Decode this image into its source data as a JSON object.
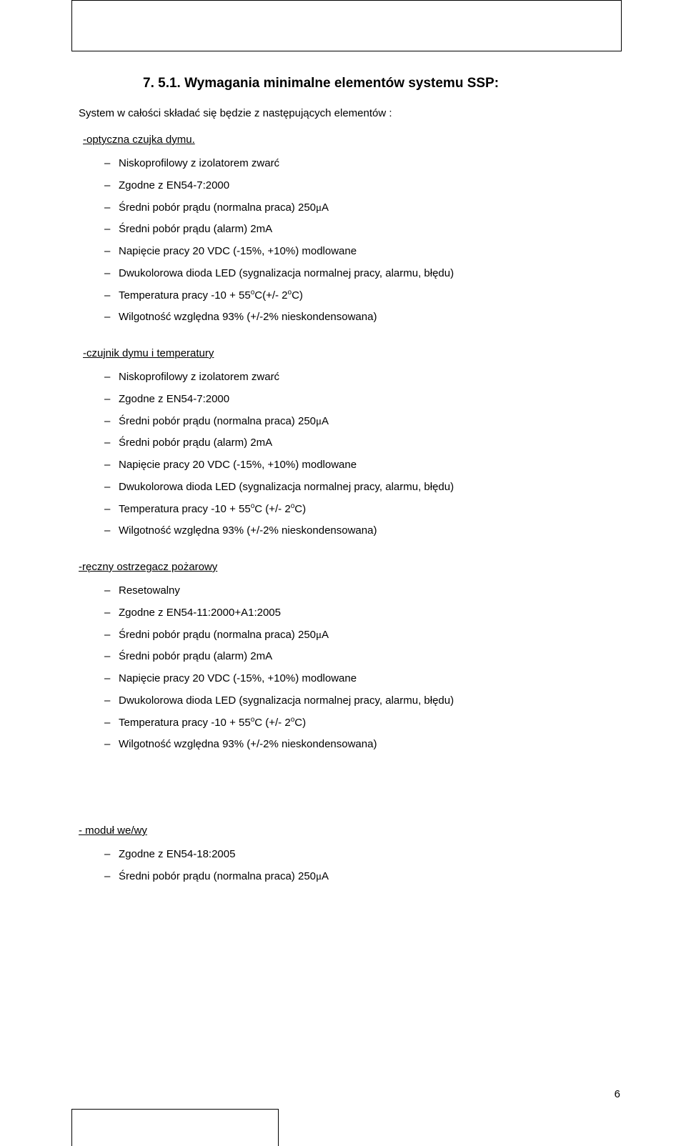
{
  "section_title": "7.   5.1. Wymagania  minimalne elementów systemu SSP:",
  "intro": "System w całości składać się będzie z następujących elementów :",
  "groups": {
    "optyczna": {
      "label": " -optyczna czujka dymu.",
      "items": [
        "Niskoprofilowy z izolatorem zwarć",
        "Zgodne z EN54-7:2000",
        "Średni pobór prądu (normalna praca) 250μA",
        "Średni pobór prądu (alarm) 2mA",
        "Napięcie pracy 20 VDC (-15%, +10%) modlowane",
        "Dwukolorowa dioda LED (sygnalizacja normalnej pracy, alarmu, błędu)",
        "Temperatura pracy -10 + 55°C(+/- 2°C)",
        "Wilgotność względna 93% (+/-2% nieskondensowana)"
      ]
    },
    "czujnik": {
      "label": " -czujnik dymu i temperatury",
      "items": [
        "Niskoprofilowy z izolatorem zwarć",
        "Zgodne z EN54-7:2000",
        "Średni pobór prądu (normalna praca) 250μA",
        "Średni pobór prądu (alarm) 2mA",
        "Napięcie pracy 20 VDC (-15%, +10%) modlowane",
        "Dwukolorowa dioda LED (sygnalizacja normalnej pracy, alarmu, błędu)",
        "Temperatura pracy -10 + 55°C (+/- 2°C)",
        "Wilgotność względna 93% (+/-2% nieskondensowana)"
      ]
    },
    "reczny": {
      "label": "-ręczny ostrzegacz pożarowy",
      "items": [
        "Resetowalny",
        "Zgodne z EN54-11:2000+A1:2005",
        "Średni pobór prądu (normalna praca) 250μA",
        "Średni pobór prądu (alarm) 2mA",
        "Napięcie pracy 20 VDC (-15%, +10%) modlowane",
        "Dwukolorowa dioda LED (sygnalizacja normalnej pracy, alarmu, błędu)",
        "Temperatura pracy -10 + 55°C (+/- 2°C)",
        "Wilgotność względna 93% (+/-2% nieskondensowana)"
      ]
    },
    "modul": {
      "label": " - moduł we/wy",
      "items": [
        "Zgodne z EN54-18:2005",
        "Średni pobór prądu (normalna praca) 250μA"
      ]
    }
  },
  "page_number": "6"
}
